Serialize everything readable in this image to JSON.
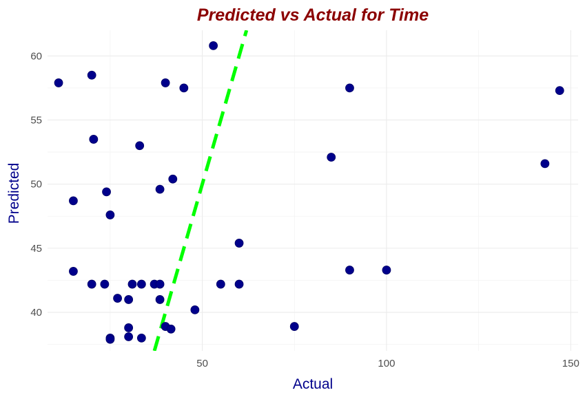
{
  "chart_data": {
    "type": "scatter",
    "title": "Predicted vs Actual for Time",
    "xlabel": "Actual",
    "ylabel": "Predicted",
    "xlim": [
      8,
      152
    ],
    "ylim": [
      37,
      62
    ],
    "x_ticks": [
      50,
      100,
      150
    ],
    "y_ticks": [
      40,
      45,
      50,
      55,
      60
    ],
    "x_minor_ticks": [
      25,
      75,
      125
    ],
    "y_minor_ticks": [
      37.5,
      42.5,
      47.5,
      52.5,
      57.5
    ],
    "grid": true,
    "legend": "none",
    "points": [
      {
        "x": 11,
        "y": 57.9
      },
      {
        "x": 15,
        "y": 48.7
      },
      {
        "x": 15,
        "y": 43.2
      },
      {
        "x": 20,
        "y": 58.5
      },
      {
        "x": 20.5,
        "y": 53.5
      },
      {
        "x": 20,
        "y": 42.2
      },
      {
        "x": 23.5,
        "y": 42.2
      },
      {
        "x": 24,
        "y": 49.4
      },
      {
        "x": 25,
        "y": 47.6
      },
      {
        "x": 25,
        "y": 38.0
      },
      {
        "x": 25,
        "y": 37.9
      },
      {
        "x": 27,
        "y": 41.1
      },
      {
        "x": 30,
        "y": 41.0
      },
      {
        "x": 30,
        "y": 38.8
      },
      {
        "x": 30,
        "y": 38.1
      },
      {
        "x": 31,
        "y": 42.2
      },
      {
        "x": 33,
        "y": 53.0
      },
      {
        "x": 33.5,
        "y": 42.2
      },
      {
        "x": 33.5,
        "y": 38.0
      },
      {
        "x": 37,
        "y": 42.2
      },
      {
        "x": 38.5,
        "y": 49.6
      },
      {
        "x": 38.5,
        "y": 42.2
      },
      {
        "x": 38.5,
        "y": 41.0
      },
      {
        "x": 40,
        "y": 57.9
      },
      {
        "x": 40,
        "y": 38.9
      },
      {
        "x": 41.5,
        "y": 38.7
      },
      {
        "x": 42,
        "y": 50.4
      },
      {
        "x": 45,
        "y": 57.5
      },
      {
        "x": 48,
        "y": 40.2
      },
      {
        "x": 53,
        "y": 60.8
      },
      {
        "x": 55,
        "y": 42.2
      },
      {
        "x": 60,
        "y": 45.4
      },
      {
        "x": 60,
        "y": 42.2
      },
      {
        "x": 75,
        "y": 38.9
      },
      {
        "x": 85,
        "y": 52.1
      },
      {
        "x": 90,
        "y": 57.5
      },
      {
        "x": 90,
        "y": 43.3
      },
      {
        "x": 100,
        "y": 43.3
      },
      {
        "x": 143,
        "y": 51.6
      },
      {
        "x": 147,
        "y": 57.3
      }
    ],
    "reference_line": {
      "x1": 37,
      "y1": 37,
      "x2": 62,
      "y2": 62,
      "style": "dashed"
    },
    "colors": {
      "points": "#00008b",
      "reference_line": "#00ff00",
      "title": "#8b0000",
      "axis_title": "#00008b"
    }
  }
}
